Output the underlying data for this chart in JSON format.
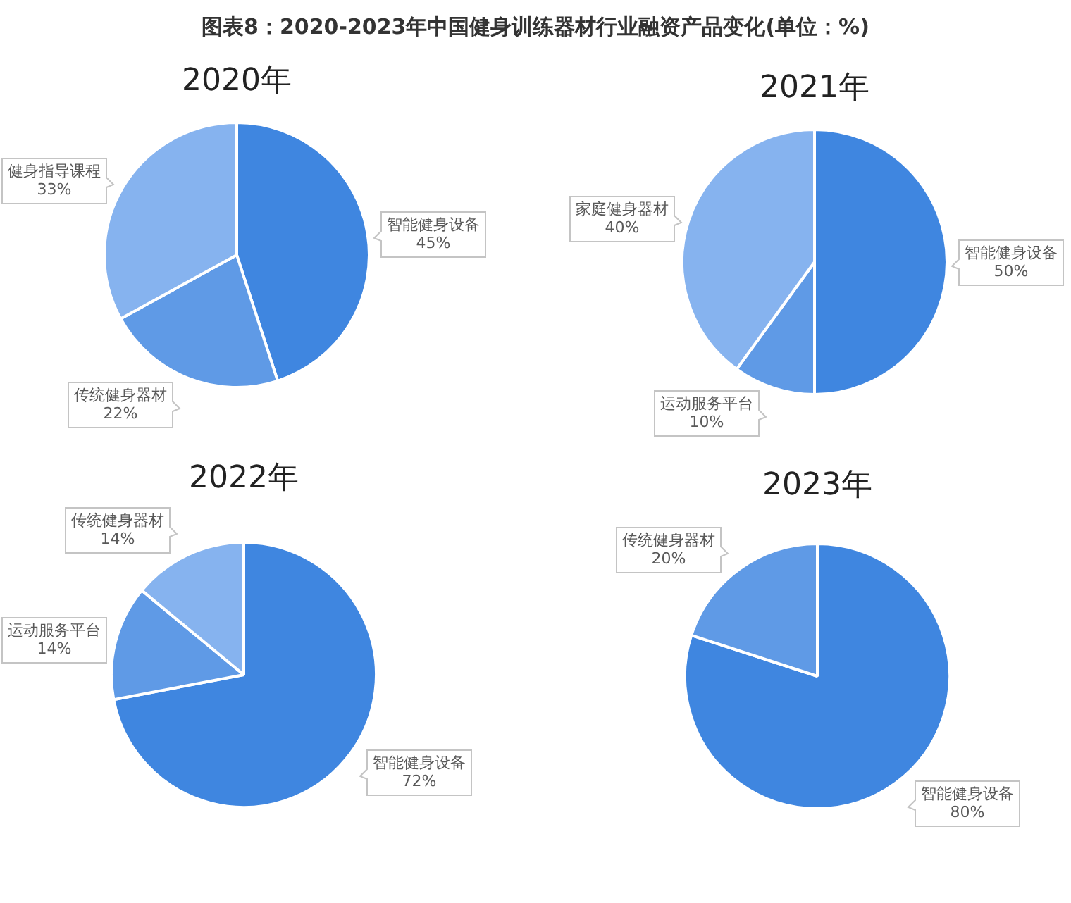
{
  "chart_data": [
    {
      "type": "pie",
      "title": "图表8：2020-2023年中国健身训练器材行业融资产品变化(单位：%)",
      "subtitle": "2020年",
      "categories": [
        "智能健身设备",
        "传统健身器材",
        "健身指导课程"
      ],
      "values": [
        45,
        22,
        33
      ],
      "colors": [
        "#3f86e0",
        "#5f9ae6",
        "#86b3ef"
      ],
      "value_labels": [
        "45%",
        "22%",
        "33%"
      ]
    },
    {
      "type": "pie",
      "title": "2021年",
      "categories": [
        "智能健身设备",
        "运动服务平台",
        "家庭健身器材"
      ],
      "values": [
        50,
        10,
        40
      ],
      "colors": [
        "#3f86e0",
        "#5f9ae6",
        "#86b3ef"
      ],
      "value_labels": [
        "50%",
        "10%",
        "40%"
      ]
    },
    {
      "type": "pie",
      "title": "2022年",
      "categories": [
        "智能健身设备",
        "运动服务平台",
        "传统健身器材"
      ],
      "values": [
        72,
        14,
        14
      ],
      "colors": [
        "#3f86e0",
        "#5f9ae6",
        "#86b3ef"
      ],
      "value_labels": [
        "72%",
        "14%",
        "14%"
      ]
    },
    {
      "type": "pie",
      "title": "2023年",
      "categories": [
        "智能健身设备",
        "传统健身器材"
      ],
      "values": [
        80,
        20
      ],
      "colors": [
        "#3f86e0",
        "#5f9ae6"
      ],
      "value_labels": [
        "80%",
        "20%"
      ]
    }
  ]
}
